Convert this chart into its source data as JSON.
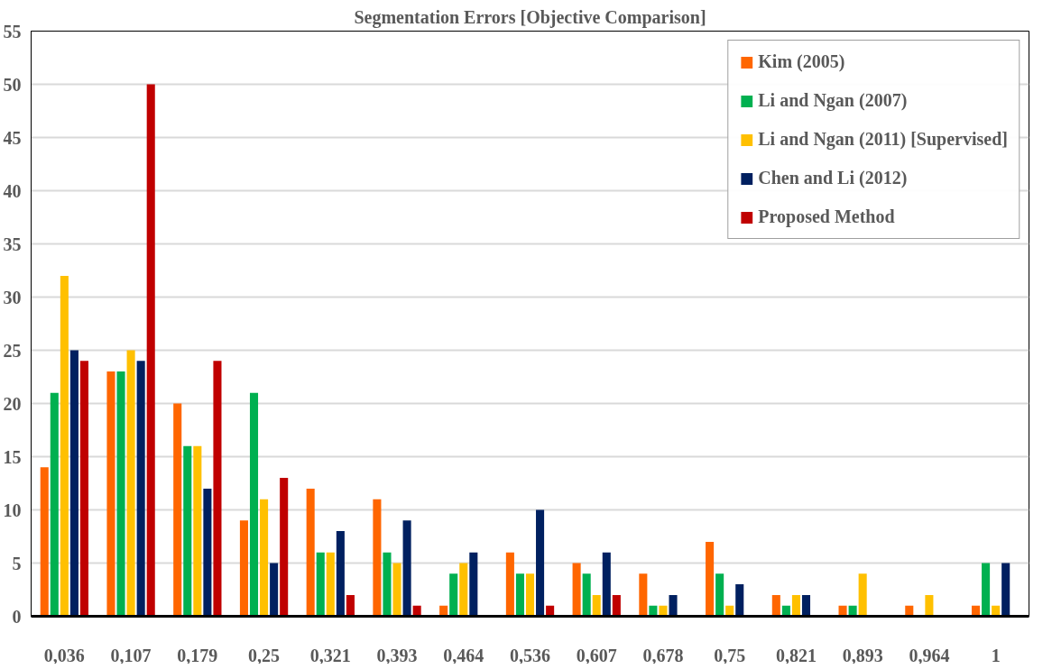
{
  "chart_data": {
    "type": "bar",
    "title": "Segmentation Errors [Objective Comparison]",
    "categories": [
      "0,036",
      "0,107",
      "0,179",
      "0,25",
      "0,321",
      "0,393",
      "0,464",
      "0,536",
      "0,607",
      "0,678",
      "0,75",
      "0,821",
      "0,893",
      "0,964",
      "1"
    ],
    "series": [
      {
        "name": "Kim (2005)",
        "color": "#ff6600",
        "values": [
          14,
          23,
          20,
          9,
          12,
          11,
          1,
          6,
          5,
          4,
          7,
          2,
          1,
          1,
          1
        ]
      },
      {
        "name": "Li and Ngan (2007)",
        "color": "#00b050",
        "values": [
          21,
          23,
          16,
          21,
          6,
          6,
          4,
          4,
          4,
          1,
          4,
          1,
          1,
          null,
          5
        ]
      },
      {
        "name": "Li and Ngan (2011) [Supervised]",
        "color": "#ffc000",
        "values": [
          32,
          25,
          16,
          11,
          6,
          5,
          5,
          4,
          2,
          1,
          1,
          2,
          4,
          2,
          1
        ]
      },
      {
        "name": "Chen and Li (2012)",
        "color": "#002060",
        "values": [
          25,
          24,
          12,
          5,
          8,
          9,
          6,
          10,
          6,
          2,
          3,
          2,
          null,
          null,
          5
        ]
      },
      {
        "name": "Proposed Method",
        "color": "#c00000",
        "values": [
          24,
          50,
          24,
          13,
          2,
          1,
          null,
          1,
          2,
          null,
          null,
          null,
          null,
          null,
          null
        ]
      }
    ],
    "ylim": [
      0,
      55
    ],
    "yticks": [
      0,
      5,
      10,
      15,
      20,
      25,
      30,
      35,
      40,
      45,
      50,
      55
    ],
    "grid": "y",
    "legend": "top right"
  }
}
